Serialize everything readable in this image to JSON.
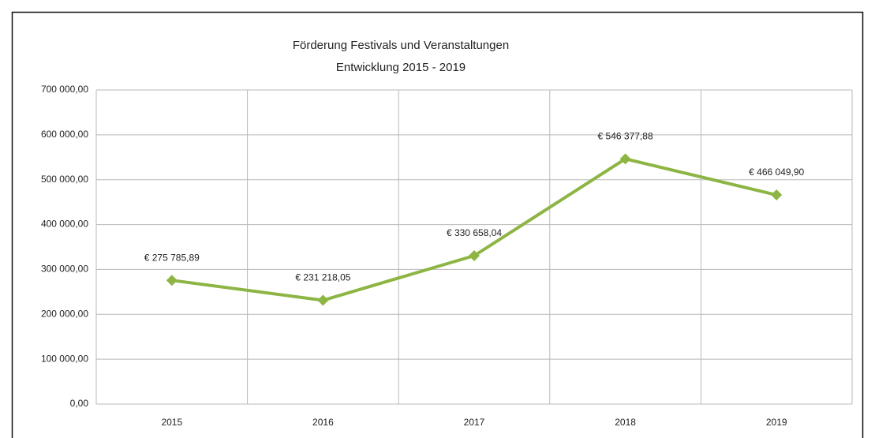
{
  "chart_data": {
    "type": "line",
    "title": "Förderung Festivals und Veranstaltungen",
    "subtitle": "Entwicklung 2015 - 2019",
    "categories": [
      "2015",
      "2016",
      "2017",
      "2018",
      "2019"
    ],
    "values": [
      275785.89,
      231218.05,
      330658.04,
      546377.88,
      466049.9
    ],
    "value_labels": [
      "€ 275 785,89",
      "€ 231 218,05",
      "€ 330 658,04",
      "€ 546 377,88",
      "€ 466 049,90"
    ],
    "color": "#8db544",
    "ylim": [
      0,
      700000
    ],
    "yticks": [
      {
        "value": 0,
        "label": "0,00"
      },
      {
        "value": 100000,
        "label": "100 000,00"
      },
      {
        "value": 200000,
        "label": "200 000,00"
      },
      {
        "value": 300000,
        "label": "300 000,00"
      },
      {
        "value": 400000,
        "label": "400 000,00"
      },
      {
        "value": 500000,
        "label": "500 000,00"
      },
      {
        "value": 600000,
        "label": "600 000,00"
      },
      {
        "value": 700000,
        "label": "700 000,00"
      }
    ],
    "grid": true
  }
}
